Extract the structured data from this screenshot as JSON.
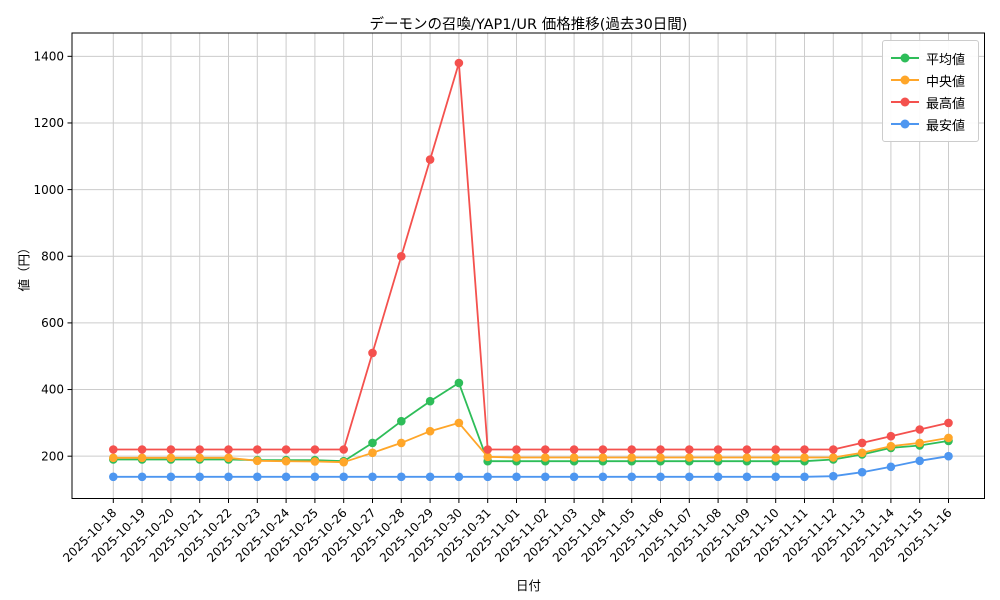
{
  "chart_data": {
    "type": "line",
    "title": "デーモンの召喚/YAP1/UR 価格推移(過去30日間)",
    "xlabel": "日付",
    "ylabel": "値（円）",
    "grid": true,
    "legend_position": "upper right",
    "ylim": [
      73,
      1470
    ],
    "yticks": [
      200,
      400,
      600,
      800,
      1000,
      1200,
      1400
    ],
    "x": [
      "2025-10-18",
      "2025-10-19",
      "2025-10-20",
      "2025-10-21",
      "2025-10-22",
      "2025-10-23",
      "2025-10-24",
      "2025-10-25",
      "2025-10-26",
      "2025-10-27",
      "2025-10-28",
      "2025-10-29",
      "2025-10-30",
      "2025-10-31",
      "2025-11-01",
      "2025-11-02",
      "2025-11-03",
      "2025-11-04",
      "2025-11-05",
      "2025-11-06",
      "2025-11-07",
      "2025-11-08",
      "2025-11-09",
      "2025-11-10",
      "2025-11-11",
      "2025-11-12",
      "2025-11-13",
      "2025-11-14",
      "2025-11-15",
      "2025-11-16"
    ],
    "series": [
      {
        "name": "平均値",
        "color": "#2EBD59",
        "values": [
          190,
          190,
          190,
          190,
          190,
          188,
          188,
          188,
          185,
          240,
          305,
          365,
          420,
          185,
          185,
          185,
          185,
          185,
          185,
          185,
          185,
          185,
          185,
          185,
          185,
          190,
          205,
          225,
          232,
          246
        ]
      },
      {
        "name": "中央値",
        "color": "#FFA629",
        "values": [
          195,
          195,
          195,
          195,
          195,
          186,
          185,
          184,
          182,
          210,
          240,
          275,
          300,
          198,
          196,
          196,
          196,
          196,
          196,
          196,
          196,
          196,
          196,
          196,
          196,
          196,
          210,
          230,
          240,
          255
        ]
      },
      {
        "name": "最高値",
        "color": "#F4514E",
        "values": [
          220,
          220,
          220,
          220,
          220,
          220,
          220,
          220,
          220,
          510,
          800,
          1090,
          1380,
          220,
          220,
          220,
          220,
          220,
          220,
          220,
          220,
          220,
          220,
          220,
          220,
          220,
          240,
          260,
          280,
          300
        ]
      },
      {
        "name": "最安値",
        "color": "#4D96F0",
        "values": [
          138,
          138,
          138,
          138,
          138,
          138,
          138,
          138,
          138,
          138,
          138,
          138,
          138,
          138,
          138,
          138,
          138,
          138,
          138,
          138,
          138,
          138,
          138,
          138,
          138,
          140,
          152,
          168,
          186,
          200
        ]
      }
    ]
  }
}
